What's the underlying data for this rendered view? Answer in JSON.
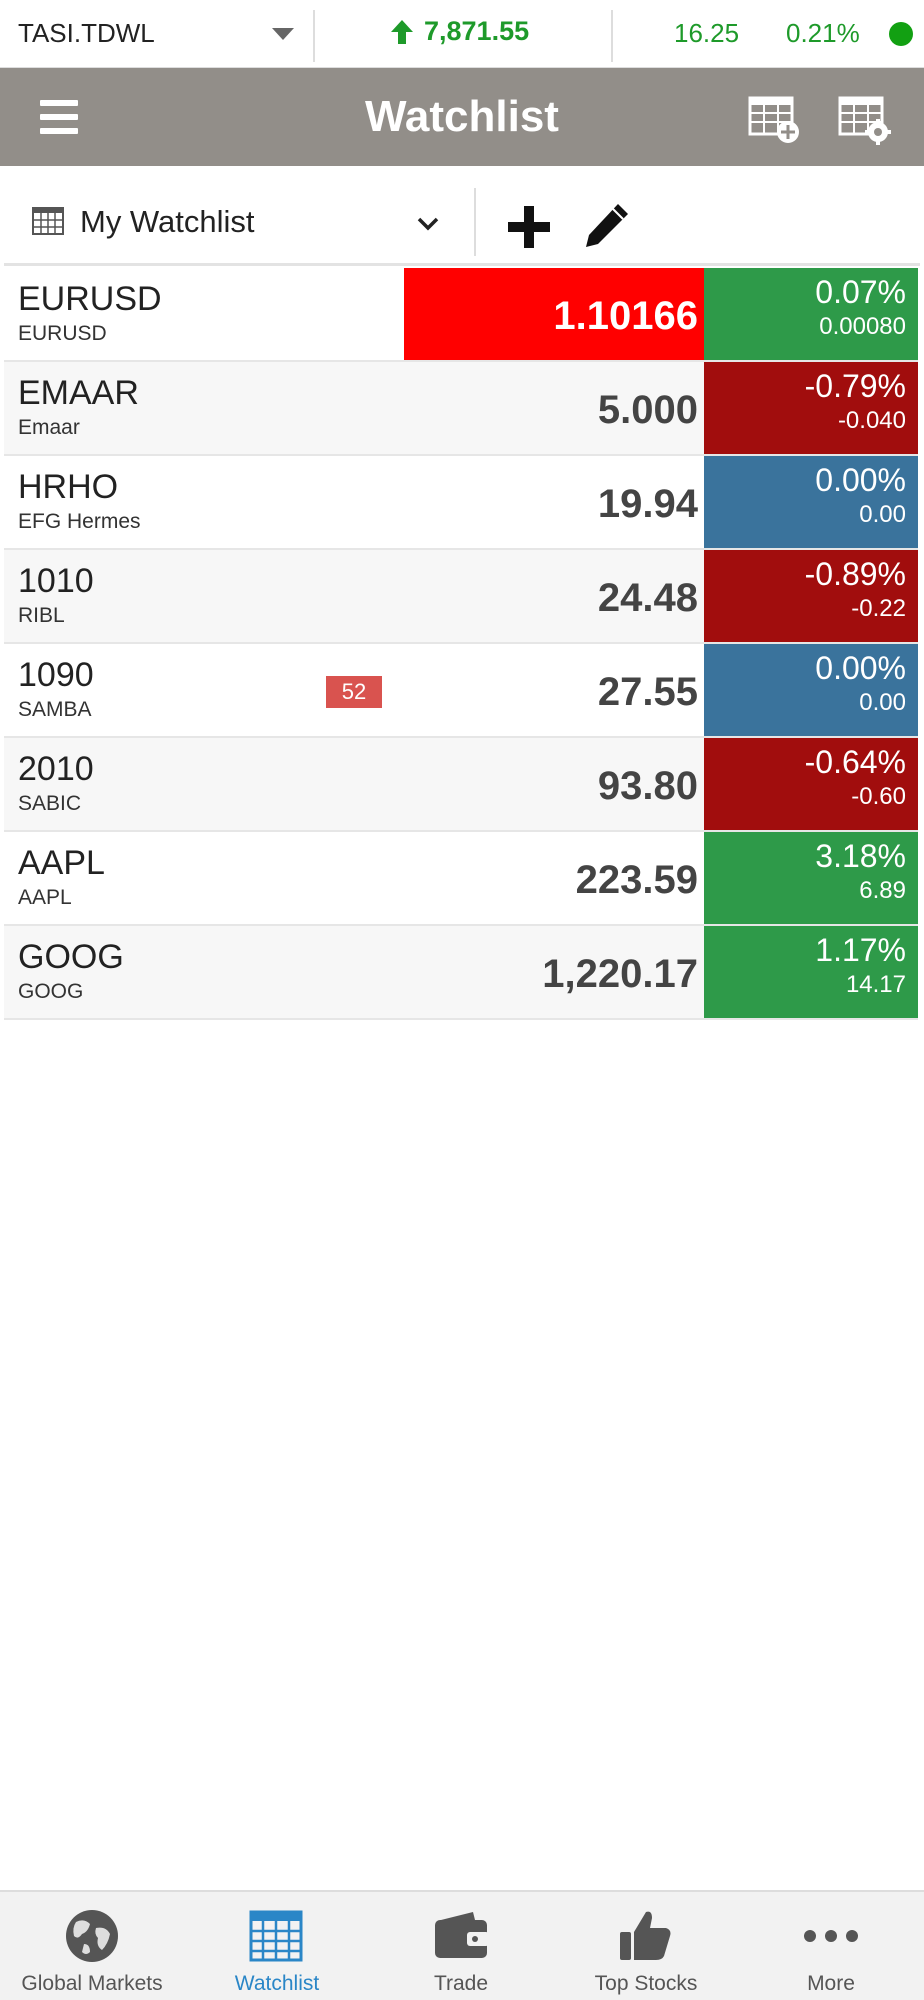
{
  "ticker": {
    "symbol": "TASI.TDWL",
    "index_value": "7,871.55",
    "change": "16.25",
    "change_pct": "0.21%",
    "status_color": "#12a012",
    "direction_icon": "arrow-up-icon"
  },
  "header": {
    "title": "Watchlist",
    "menu_icon": "hamburger-menu-icon",
    "actions": [
      "add-watchlist-icon",
      "watchlist-settings-icon"
    ]
  },
  "selector": {
    "name": "My Watchlist",
    "icons": [
      "calendar-grid-icon",
      "chevron-down-icon",
      "plus-icon",
      "pencil-icon"
    ]
  },
  "rows": [
    {
      "code": "EURUSD",
      "name": "EURUSD",
      "badge": "",
      "price": "1.10166",
      "change_pct": "0.07%",
      "change": "0.00080",
      "trend": "up",
      "highlight": true
    },
    {
      "code": "EMAAR",
      "name": "Emaar",
      "badge": "",
      "price": "5.000",
      "change_pct": "-0.79%",
      "change": "-0.040",
      "trend": "down",
      "highlight": false
    },
    {
      "code": "HRHO",
      "name": "EFG Hermes",
      "badge": "",
      "price": "19.94",
      "change_pct": "0.00%",
      "change": "0.00",
      "trend": "flat",
      "highlight": false
    },
    {
      "code": "1010",
      "name": "RIBL",
      "badge": "",
      "price": "24.48",
      "change_pct": "-0.89%",
      "change": "-0.22",
      "trend": "down",
      "highlight": false
    },
    {
      "code": "1090",
      "name": "SAMBA",
      "badge": "52",
      "price": "27.55",
      "change_pct": "0.00%",
      "change": "0.00",
      "trend": "flat",
      "highlight": false
    },
    {
      "code": "2010",
      "name": "SABIC",
      "badge": "",
      "price": "93.80",
      "change_pct": "-0.64%",
      "change": "-0.60",
      "trend": "down",
      "highlight": false
    },
    {
      "code": "AAPL",
      "name": "AAPL",
      "badge": "",
      "price": "223.59",
      "change_pct": "3.18%",
      "change": "6.89",
      "trend": "up",
      "highlight": false
    },
    {
      "code": "GOOG",
      "name": "GOOG",
      "badge": "",
      "price": "1,220.17",
      "change_pct": "1.17%",
      "change": "14.17",
      "trend": "up",
      "highlight": false
    }
  ],
  "colors": {
    "up": "#2e9a49",
    "down": "#a10d0d",
    "flat": "#3a739c",
    "highlight": "#ff0000",
    "header_bg": "#928e89",
    "active_nav": "#2a86c7"
  },
  "bottom_nav": [
    {
      "label": "Global Markets",
      "icon": "globe-icon",
      "active": false
    },
    {
      "label": "Watchlist",
      "icon": "watchlist-calendar-icon",
      "active": true
    },
    {
      "label": "Trade",
      "icon": "wallet-icon",
      "active": false
    },
    {
      "label": "Top Stocks",
      "icon": "thumbs-up-icon",
      "active": false
    },
    {
      "label": "More",
      "icon": "more-dots-icon",
      "active": false
    }
  ]
}
